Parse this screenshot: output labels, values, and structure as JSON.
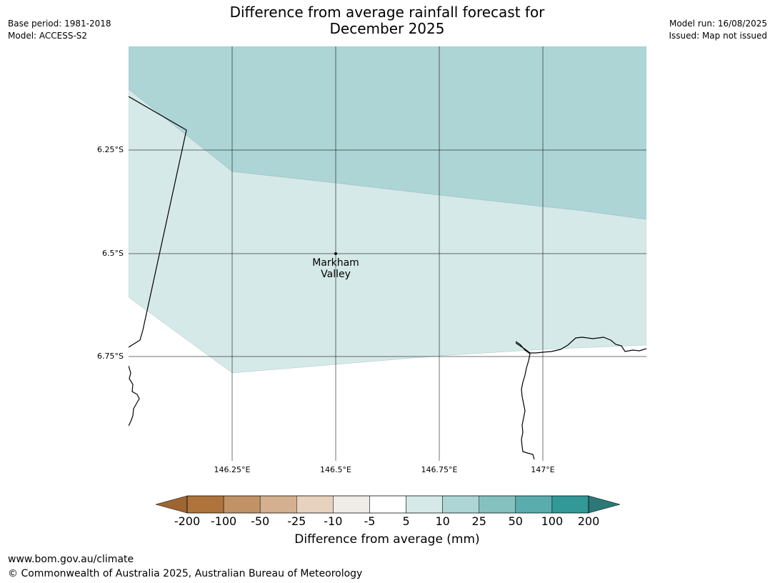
{
  "title": {
    "line1": "Difference from average rainfall forecast for",
    "line2": "December 2025"
  },
  "meta_left": {
    "base_period": "Base period: 1981-2018",
    "model": "Model: ACCESS-S2"
  },
  "meta_right": {
    "model_run": "Model run: 16/08/2025",
    "issued": "Issued: Map not issued"
  },
  "map": {
    "latitude_labels": [
      "6.25°S",
      "6.5°S",
      "6.75°S"
    ],
    "longitude_labels": [
      "146.25°E",
      "146.5°E",
      "146.75°E",
      "147°E"
    ],
    "place": {
      "name_line1": "Markham",
      "name_line2": "Valley"
    },
    "region_colors": {
      "category_10_25": "#aed5d5",
      "category_5_10": "#d5e9e8",
      "category_-5_5": "#ffffff"
    }
  },
  "colorbar": {
    "label": "Difference from average (mm)",
    "ticks": [
      "-200",
      "-100",
      "-50",
      "-25",
      "-10",
      "-5",
      "5",
      "10",
      "25",
      "50",
      "100",
      "200"
    ],
    "colors": [
      "#9d6532",
      "#ae743c",
      "#c19266",
      "#d4b090",
      "#e6d2bf",
      "#efebe7",
      "#ffffff",
      "#d5e9e8",
      "#aed5d5",
      "#84c1bf",
      "#5bacac",
      "#329898",
      "#2c7876"
    ]
  },
  "footer": {
    "url": "www.bom.gov.au/climate",
    "copyright": "© Commonwealth of Australia 2025, Australian Bureau of Meteorology"
  }
}
